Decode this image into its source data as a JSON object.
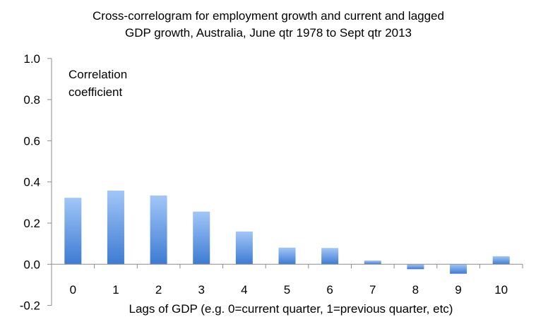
{
  "chart_data": {
    "type": "bar",
    "title": [
      "Cross-correlogram for employment growth and current and lagged",
      "GDP growth, Australia, June qtr 1978 to Sept qtr 2013"
    ],
    "xlabel": "Lags of GDP (e.g. 0=current quarter, 1=previous quarter, etc)",
    "ylabel": [
      "Correlation",
      "coefficient"
    ],
    "categories": [
      "0",
      "1",
      "2",
      "3",
      "4",
      "5",
      "6",
      "7",
      "8",
      "9",
      "10"
    ],
    "values": [
      0.323,
      0.358,
      0.334,
      0.256,
      0.159,
      0.081,
      0.079,
      0.018,
      -0.024,
      -0.046,
      0.039
    ],
    "ylim": [
      -0.2,
      1.0
    ],
    "yticks": [
      "-0.2",
      "0.0",
      "0.2",
      "0.4",
      "0.6",
      "0.8",
      "1.0"
    ],
    "grid": false,
    "legend": "none",
    "colors": {
      "bar_top": "#a2c6f8",
      "bar_bottom": "#3d7bd2",
      "axis": "#8c8c8c"
    }
  }
}
